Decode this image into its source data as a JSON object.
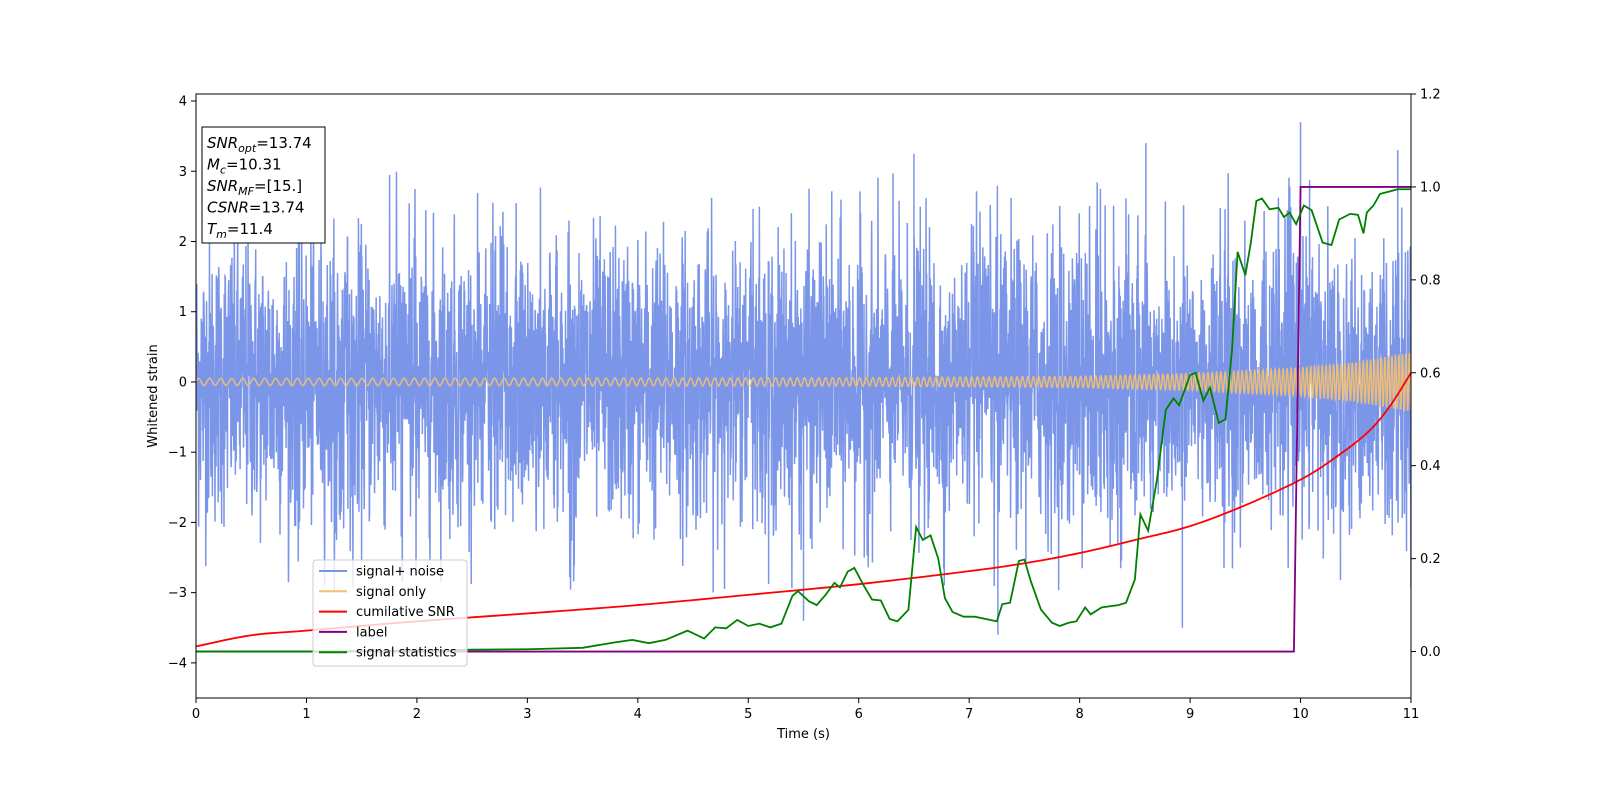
{
  "chart_data": {
    "type": "line",
    "xlabel": "Time (s)",
    "ylabel": "Whitened strain",
    "xlim": [
      0,
      11
    ],
    "ylim_left": [
      -4.5,
      4.1
    ],
    "ylim_right": [
      -0.1,
      1.2
    ],
    "x_ticks": [
      0,
      1,
      2,
      3,
      4,
      5,
      6,
      7,
      8,
      9,
      10,
      11
    ],
    "y_ticks_left": [
      -4,
      -3,
      -2,
      -1,
      0,
      1,
      2,
      3,
      4
    ],
    "y_ticks_right": [
      0.0,
      0.2,
      0.4,
      0.6,
      0.8,
      1.0,
      1.2
    ],
    "y_tick_labels_left": [
      "−4",
      "−3",
      "−2",
      "−1",
      "0",
      "1",
      "2",
      "3",
      "4"
    ],
    "y_tick_labels_right": [
      "0.0",
      "0.2",
      "0.4",
      "0.6",
      "0.8",
      "1.0",
      "1.2"
    ],
    "grid": false,
    "legend_position": "lower-left",
    "annotation_box": {
      "position": "top-left",
      "lines": [
        {
          "base": "SNR",
          "sub": "opt",
          "value": "=13.74"
        },
        {
          "base": "M",
          "sub": "c",
          "value": "=10.31"
        },
        {
          "base": "SNR",
          "sub": "MF",
          "value": "=[15.]"
        },
        {
          "base": "CSNR",
          "sub": "",
          "value": "=13.74"
        },
        {
          "base": "T",
          "sub": "m",
          "value": "=11.4"
        }
      ]
    },
    "series": [
      {
        "name": "signal+ noise",
        "axis": "left",
        "color": "#7b96e8",
        "description_type": "noise",
        "noise_sigma": 1.0,
        "extreme_peaks": [
          {
            "x": 10.0,
            "y": 3.7
          },
          {
            "x": 6.5,
            "y": 3.25
          },
          {
            "x": 8.6,
            "y": 3.4
          },
          {
            "x": 10.88,
            "y": 3.3
          },
          {
            "x": 5.5,
            "y": -3.4
          },
          {
            "x": 8.93,
            "y": -3.5
          },
          {
            "x": 7.26,
            "y": -3.6
          }
        ]
      },
      {
        "name": "signal only",
        "axis": "left",
        "color": "#f5c06e",
        "envelope": [
          {
            "x": 0,
            "amp": 0.05
          },
          {
            "x": 6,
            "amp": 0.06
          },
          {
            "x": 8,
            "amp": 0.08
          },
          {
            "x": 9,
            "amp": 0.12
          },
          {
            "x": 10,
            "amp": 0.2
          },
          {
            "x": 10.5,
            "amp": 0.28
          },
          {
            "x": 11,
            "amp": 0.42
          }
        ]
      },
      {
        "name": "cumilative SNR",
        "axis": "right",
        "color": "#ff0000",
        "x": [
          0,
          0.5,
          1,
          2,
          3,
          4,
          5,
          6,
          7,
          7.5,
          8,
          8.5,
          9,
          9.5,
          10,
          10.3,
          10.6,
          10.8,
          11
        ],
        "values": [
          0.011,
          0.035,
          0.045,
          0.065,
          0.082,
          0.1,
          0.122,
          0.145,
          0.173,
          0.19,
          0.212,
          0.24,
          0.27,
          0.315,
          0.37,
          0.415,
          0.47,
          0.525,
          0.6
        ]
      },
      {
        "name": "label",
        "axis": "right",
        "color": "#800080",
        "x": [
          0,
          9.94,
          10.0,
          11
        ],
        "values": [
          0,
          0,
          1,
          1
        ]
      },
      {
        "name": "signal statistics",
        "axis": "right",
        "color": "#008000",
        "x": [
          0,
          1,
          2,
          2.5,
          3,
          3.5,
          3.8,
          3.95,
          4.1,
          4.25,
          4.45,
          4.6,
          4.7,
          4.8,
          4.9,
          5.0,
          5.1,
          5.2,
          5.3,
          5.4,
          5.45,
          5.55,
          5.62,
          5.7,
          5.78,
          5.83,
          5.9,
          5.96,
          6.05,
          6.12,
          6.2,
          6.28,
          6.35,
          6.45,
          6.52,
          6.58,
          6.65,
          6.72,
          6.78,
          6.85,
          6.95,
          7.05,
          7.15,
          7.25,
          7.3,
          7.37,
          7.45,
          7.5,
          7.56,
          7.65,
          7.75,
          7.82,
          7.9,
          7.97,
          8.05,
          8.1,
          8.2,
          8.35,
          8.42,
          8.5,
          8.55,
          8.62,
          8.7,
          8.78,
          8.85,
          8.9,
          9.0,
          9.05,
          9.12,
          9.18,
          9.26,
          9.32,
          9.38,
          9.43,
          9.5,
          9.55,
          9.6,
          9.65,
          9.72,
          9.8,
          9.85,
          9.9,
          9.96,
          10.03,
          10.1,
          10.2,
          10.28,
          10.35,
          10.45,
          10.52,
          10.57,
          10.6,
          10.66,
          10.72,
          10.8,
          10.88,
          11.0
        ],
        "values": [
          0,
          0.0,
          0.002,
          0.004,
          0.005,
          0.008,
          0.02,
          0.025,
          0.018,
          0.025,
          0.045,
          0.028,
          0.052,
          0.05,
          0.068,
          0.055,
          0.06,
          0.052,
          0.06,
          0.12,
          0.13,
          0.108,
          0.1,
          0.122,
          0.148,
          0.138,
          0.172,
          0.18,
          0.14,
          0.112,
          0.11,
          0.07,
          0.065,
          0.09,
          0.268,
          0.24,
          0.25,
          0.2,
          0.115,
          0.085,
          0.075,
          0.075,
          0.07,
          0.065,
          0.102,
          0.105,
          0.195,
          0.198,
          0.15,
          0.09,
          0.062,
          0.055,
          0.062,
          0.065,
          0.095,
          0.08,
          0.095,
          0.1,
          0.105,
          0.155,
          0.295,
          0.26,
          0.37,
          0.52,
          0.545,
          0.53,
          0.595,
          0.6,
          0.54,
          0.568,
          0.492,
          0.5,
          0.65,
          0.86,
          0.81,
          0.88,
          0.97,
          0.975,
          0.952,
          0.955,
          0.935,
          0.945,
          0.92,
          0.96,
          0.95,
          0.88,
          0.875,
          0.93,
          0.942,
          0.94,
          0.9,
          0.945,
          0.96,
          0.985,
          0.99,
          0.995,
          0.995
        ]
      }
    ]
  }
}
